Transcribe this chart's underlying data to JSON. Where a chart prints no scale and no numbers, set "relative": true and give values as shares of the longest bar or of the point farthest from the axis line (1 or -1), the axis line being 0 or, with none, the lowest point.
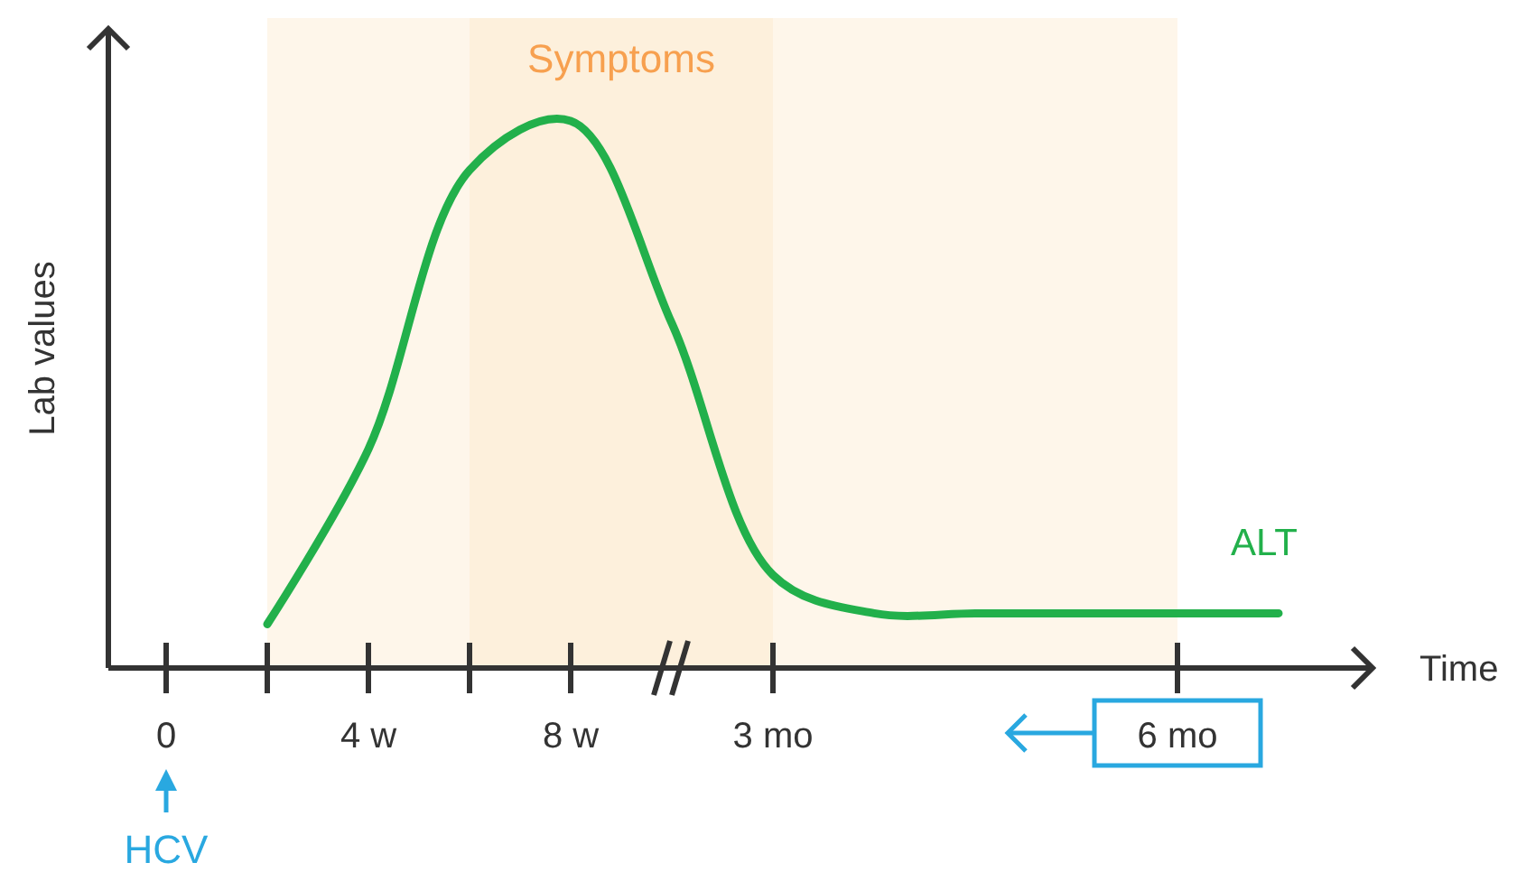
{
  "chart_data": {
    "type": "line",
    "xlabel": "Time",
    "ylabel": "Lab values",
    "relative": true,
    "categories": [
      "0",
      null,
      "4 w",
      null,
      "8 w",
      null,
      "3 mo",
      null,
      null,
      null,
      "6 mo",
      null
    ],
    "series": [
      {
        "name": "ALT",
        "color": "#22b04b",
        "values": [
          null,
          0.08,
          0.4,
          0.91,
          1,
          0.63,
          0.17,
          0.1,
          0.1,
          0.1,
          0.1,
          0.1
        ]
      }
    ],
    "annotations": [
      "Symptoms",
      "HCV"
    ],
    "grid": false,
    "legend": false
  }
}
